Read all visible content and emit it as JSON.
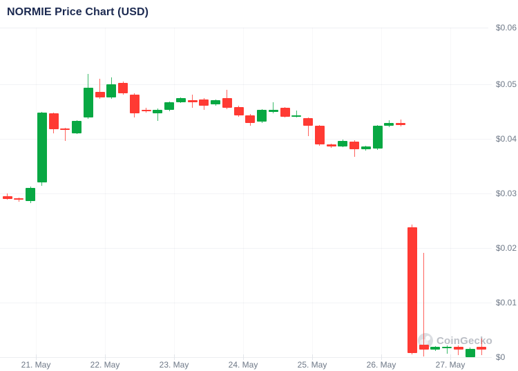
{
  "title": "NORMIE Price Chart (USD)",
  "watermark": {
    "label": "CoinGecko"
  },
  "colors": {
    "up": "#08a843",
    "down": "#ff3a33",
    "title": "#1b2950",
    "axis_text": "#6e7887"
  },
  "chart_data": {
    "type": "candlestick",
    "title": "NORMIE Price Chart (USD)",
    "currency": "USD",
    "interval": "4h",
    "ylim": [
      0,
      0.06
    ],
    "grid": true,
    "y_ticks": [
      {
        "value": 0.06,
        "label": "$0.06"
      },
      {
        "value": 0.05,
        "label": "$0.05"
      },
      {
        "value": 0.04,
        "label": "$0.04"
      },
      {
        "value": 0.03,
        "label": "$0.03"
      },
      {
        "value": 0.02,
        "label": "$0.02"
      },
      {
        "value": 0.01,
        "label": "$0.01"
      },
      {
        "value": 0.0,
        "label": "$0"
      }
    ],
    "x_tick_labels": [
      "21. May",
      "22. May",
      "23. May",
      "24. May",
      "25. May",
      "26. May",
      "27. May"
    ],
    "candles": [
      {
        "o": 0.0296,
        "h": 0.03,
        "l": 0.0289,
        "c": 0.0291
      },
      {
        "o": 0.0291,
        "h": 0.0293,
        "l": 0.0285,
        "c": 0.0289
      },
      {
        "o": 0.0286,
        "h": 0.0313,
        "l": 0.0283,
        "c": 0.0311
      },
      {
        "o": 0.032,
        "h": 0.045,
        "l": 0.0314,
        "c": 0.0448
      },
      {
        "o": 0.0447,
        "h": 0.0449,
        "l": 0.041,
        "c": 0.0418
      },
      {
        "o": 0.0419,
        "h": 0.0421,
        "l": 0.0396,
        "c": 0.0417
      },
      {
        "o": 0.0411,
        "h": 0.0435,
        "l": 0.0409,
        "c": 0.0433
      },
      {
        "o": 0.0439,
        "h": 0.052,
        "l": 0.0437,
        "c": 0.0494
      },
      {
        "o": 0.0487,
        "h": 0.051,
        "l": 0.0474,
        "c": 0.0476
      },
      {
        "o": 0.0476,
        "h": 0.0513,
        "l": 0.0474,
        "c": 0.05
      },
      {
        "o": 0.0503,
        "h": 0.0506,
        "l": 0.0482,
        "c": 0.0484
      },
      {
        "o": 0.0482,
        "h": 0.0484,
        "l": 0.044,
        "c": 0.0447
      },
      {
        "o": 0.0453,
        "h": 0.0458,
        "l": 0.0448,
        "c": 0.0451
      },
      {
        "o": 0.0447,
        "h": 0.0456,
        "l": 0.0433,
        "c": 0.0454
      },
      {
        "o": 0.0453,
        "h": 0.0469,
        "l": 0.0451,
        "c": 0.0467
      },
      {
        "o": 0.0468,
        "h": 0.0477,
        "l": 0.0466,
        "c": 0.0475
      },
      {
        "o": 0.0471,
        "h": 0.0481,
        "l": 0.0457,
        "c": 0.0468
      },
      {
        "o": 0.0473,
        "h": 0.0475,
        "l": 0.0453,
        "c": 0.0461
      },
      {
        "o": 0.0463,
        "h": 0.0473,
        "l": 0.0461,
        "c": 0.0471
      },
      {
        "o": 0.0475,
        "h": 0.049,
        "l": 0.0455,
        "c": 0.0457
      },
      {
        "o": 0.0459,
        "h": 0.0461,
        "l": 0.0441,
        "c": 0.0443
      },
      {
        "o": 0.0444,
        "h": 0.0446,
        "l": 0.0425,
        "c": 0.043
      },
      {
        "o": 0.0432,
        "h": 0.0455,
        "l": 0.043,
        "c": 0.0453
      },
      {
        "o": 0.0449,
        "h": 0.0468,
        "l": 0.0447,
        "c": 0.0454
      },
      {
        "o": 0.0457,
        "h": 0.0459,
        "l": 0.0439,
        "c": 0.0441
      },
      {
        "o": 0.0441,
        "h": 0.0452,
        "l": 0.0439,
        "c": 0.0444
      },
      {
        "o": 0.0438,
        "h": 0.044,
        "l": 0.0406,
        "c": 0.0424
      },
      {
        "o": 0.0424,
        "h": 0.0426,
        "l": 0.0388,
        "c": 0.039
      },
      {
        "o": 0.039,
        "h": 0.0392,
        "l": 0.0384,
        "c": 0.0386
      },
      {
        "o": 0.0387,
        "h": 0.0399,
        "l": 0.0385,
        "c": 0.0397
      },
      {
        "o": 0.0396,
        "h": 0.0398,
        "l": 0.0367,
        "c": 0.0381
      },
      {
        "o": 0.0381,
        "h": 0.0388,
        "l": 0.0379,
        "c": 0.0386
      },
      {
        "o": 0.0382,
        "h": 0.0426,
        "l": 0.038,
        "c": 0.0424
      },
      {
        "o": 0.0424,
        "h": 0.0434,
        "l": 0.0422,
        "c": 0.043
      },
      {
        "o": 0.043,
        "h": 0.0436,
        "l": 0.0423,
        "c": 0.0425
      },
      {
        "o": 0.0239,
        "h": 0.0243,
        "l": 0.0005,
        "c": 0.0008
      },
      {
        "o": 0.0023,
        "h": 0.0191,
        "l": 0.0001,
        "c": 0.0014
      },
      {
        "o": 0.0014,
        "h": 0.0021,
        "l": 0.0012,
        "c": 0.0019
      },
      {
        "o": 0.0018,
        "h": 0.0022,
        "l": 0.0006,
        "c": 0.002
      },
      {
        "o": 0.002,
        "h": 0.0022,
        "l": 0.0004,
        "c": 0.0014
      },
      {
        "o": 0.0001,
        "h": 0.0018,
        "l": 0.0,
        "c": 0.0016
      },
      {
        "o": 0.0019,
        "h": 0.0035,
        "l": 0.0004,
        "c": 0.0014
      }
    ]
  }
}
